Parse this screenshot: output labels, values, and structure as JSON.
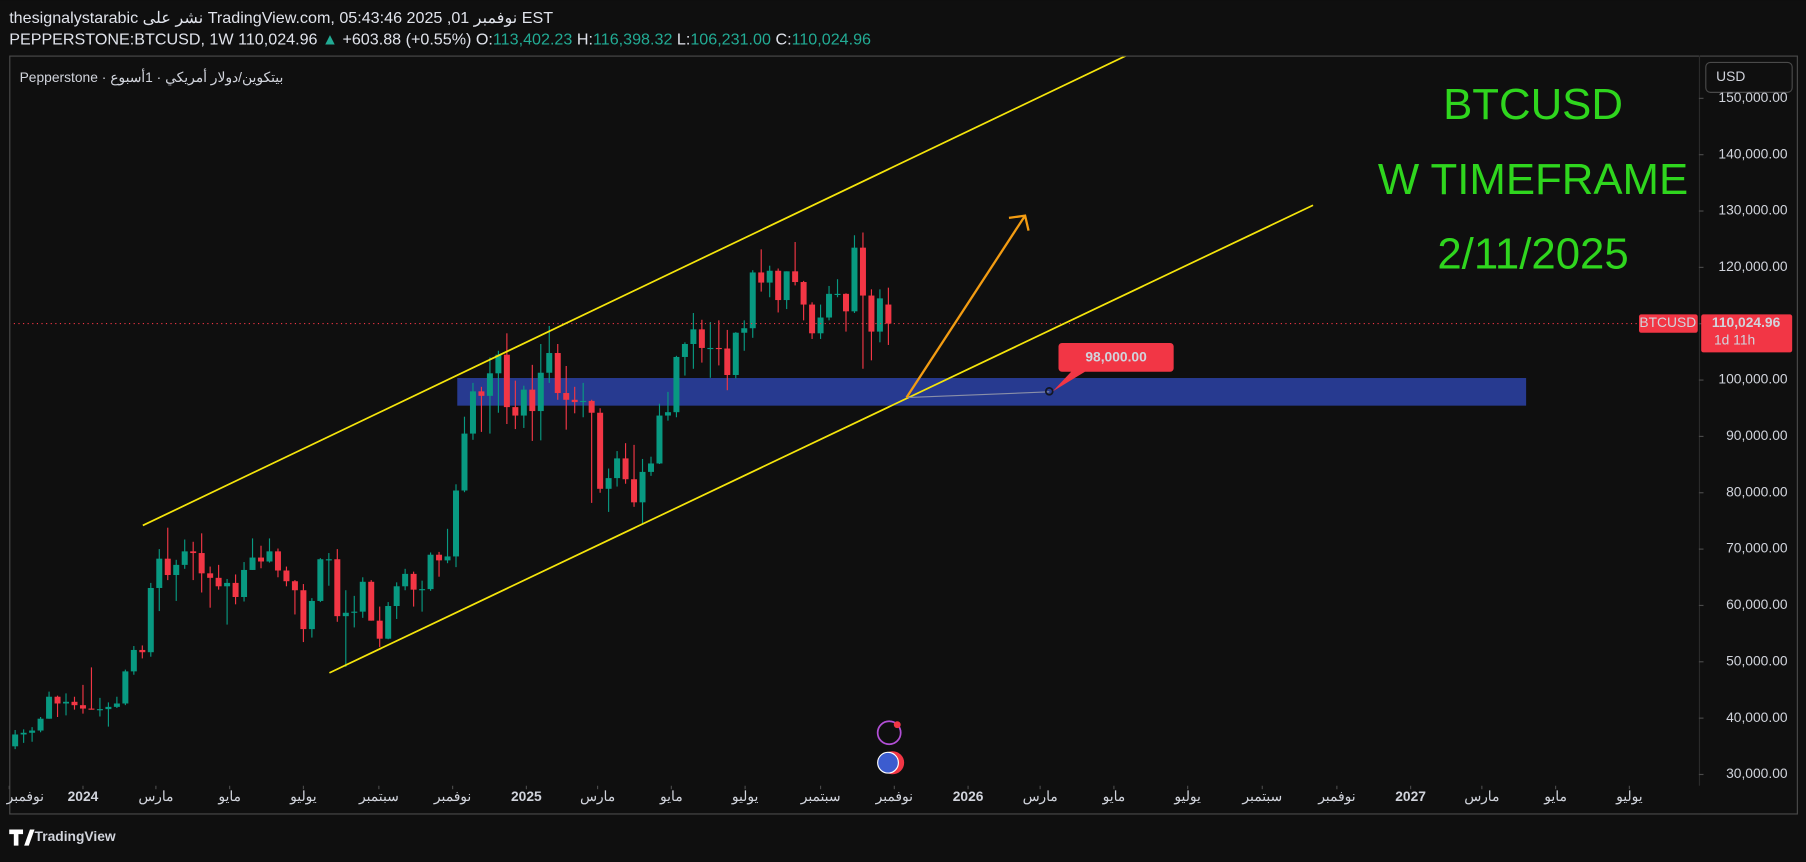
{
  "header": {
    "line1": "thesignalystarabic نشر على TradingView.com, نوفمبر 01, 2025 05:43:46 EST",
    "symbol": "PEPPERSTONE:BTCUSD, 1W",
    "last": "110,024.96",
    "arrow": "▲",
    "change": "+603.88 (+0.55%)",
    "ohlc": [
      [
        "O:",
        "113,402.23"
      ],
      [
        "H:",
        "116,398.32"
      ],
      [
        "L:",
        "106,231.00"
      ],
      [
        "C:",
        "110,024.96"
      ]
    ],
    "legend": "Pepperstone · بيتكوين/دولار أمريكي · 1أسبوع",
    "currency": "USD",
    "brand": "TradingView"
  },
  "chart_data": {
    "type": "candlestick",
    "title_lines": [
      "BTCUSD",
      "W TIMEFRAME",
      "2/11/2025"
    ],
    "up_color": "#089981",
    "down_color": "#f23645",
    "open": [
      35000,
      37100,
      37400,
      37800,
      39900,
      43800,
      42600,
      42900,
      42300,
      41700,
      41600,
      41600,
      42000,
      42600,
      48300,
      52100,
      51700,
      63100,
      68300,
      65400,
      67200,
      69600,
      69300,
      65700,
      64900,
      63400,
      64000,
      61500,
      66300,
      68500,
      67800,
      69600,
      66200,
      64300,
      62700,
      55800,
      60800,
      68200,
      68200,
      58100,
      58700,
      58900,
      64200,
      57300,
      54100,
      59900,
      63400,
      65600,
      62800,
      62900,
      69000,
      68000,
      68700,
      80400,
      90500,
      98000,
      97200,
      101200,
      104500,
      95200,
      93700,
      98300,
      94500,
      101300,
      104800,
      97700,
      96500,
      96100,
      96300,
      94200,
      80700,
      82600,
      86100,
      82400,
      78300,
      83700,
      85200,
      93700,
      94300,
      104100,
      106400,
      109000,
      105700,
      105700,
      105600,
      100900,
      108400,
      109200,
      119100,
      117300,
      119400,
      114200,
      119300,
      117400,
      113400,
      108300,
      111100,
      115300,
      115300,
      112200,
      123500,
      115000,
      108600,
      113402.23
    ],
    "high": [
      37900,
      38000,
      38400,
      40200,
      44700,
      44000,
      44400,
      43800,
      45900,
      49000,
      43600,
      42800,
      43800,
      48600,
      52800,
      52900,
      64000,
      70000,
      73800,
      68100,
      71700,
      71300,
      72800,
      66900,
      67200,
      64700,
      65500,
      67700,
      71900,
      70600,
      71900,
      70100,
      66900,
      64500,
      63800,
      61300,
      68400,
      69300,
      70000,
      62700,
      61700,
      65000,
      64500,
      59800,
      60600,
      64100,
      66500,
      66000,
      64400,
      69400,
      69500,
      73600,
      81500,
      93500,
      99500,
      98800,
      104000,
      105200,
      108300,
      99900,
      99000,
      102700,
      106400,
      109600,
      106400,
      102500,
      98800,
      99500,
      96500,
      95000,
      84300,
      87400,
      88800,
      88500,
      86000,
      86400,
      95800,
      97900,
      104300,
      106700,
      111900,
      110700,
      110300,
      110600,
      108900,
      108500,
      110600,
      119500,
      123200,
      120300,
      119800,
      119300,
      124500,
      117600,
      113800,
      113400,
      116700,
      117900,
      115400,
      125700,
      126200,
      116100,
      116100,
      116398.32
    ],
    "low": [
      34500,
      35600,
      35800,
      37500,
      39900,
      40200,
      40500,
      41500,
      40800,
      41500,
      40300,
      38500,
      41800,
      42300,
      47700,
      50600,
      50900,
      59000,
      64500,
      60800,
      66500,
      64500,
      62300,
      59600,
      62800,
      56600,
      60200,
      60700,
      66300,
      66600,
      67600,
      65000,
      63400,
      58400,
      53500,
      54300,
      60600,
      63500,
      57100,
      49100,
      56100,
      57800,
      57300,
      52600,
      54000,
      57600,
      62700,
      59800,
      58900,
      62600,
      65100,
      67500,
      66800,
      80100,
      89400,
      90800,
      90500,
      94200,
      92200,
      91300,
      91500,
      89200,
      89300,
      99500,
      96500,
      91200,
      94100,
      93400,
      78200,
      80000,
      76600,
      81100,
      81600,
      77500,
      74400,
      83000,
      85100,
      92800,
      93400,
      100800,
      102000,
      103100,
      100400,
      102600,
      98200,
      100300,
      105200,
      107500,
      115700,
      114700,
      112000,
      112600,
      116800,
      110600,
      107300,
      107300,
      110600,
      114700,
      108600,
      111900,
      102000,
      103500,
      106700,
      106231.0
    ],
    "close": [
      37100,
      37400,
      37800,
      39900,
      43800,
      42600,
      42900,
      42300,
      41700,
      41600,
      41600,
      42000,
      42600,
      48300,
      52100,
      51700,
      63100,
      68300,
      65400,
      67200,
      69600,
      69300,
      65700,
      64900,
      63400,
      64000,
      61500,
      66300,
      68500,
      67800,
      69600,
      66200,
      64300,
      62700,
      55800,
      60800,
      68200,
      68200,
      58100,
      58700,
      58900,
      64200,
      57300,
      54100,
      59900,
      63400,
      65600,
      62800,
      62900,
      69000,
      68000,
      68700,
      80400,
      90500,
      98000,
      97200,
      101200,
      104500,
      95200,
      93700,
      98300,
      94500,
      101300,
      104800,
      97700,
      96500,
      96100,
      96300,
      94200,
      80700,
      82600,
      86100,
      82400,
      78300,
      83700,
      85200,
      93700,
      94300,
      104100,
      106400,
      109000,
      105700,
      105700,
      105600,
      100900,
      108400,
      109200,
      119100,
      117300,
      119400,
      114200,
      119300,
      117400,
      113400,
      108300,
      111100,
      115300,
      115300,
      112200,
      123500,
      115000,
      108600,
      114500,
      110024.96
    ],
    "ylim": [
      28000,
      157600
    ],
    "yticks": [
      {
        "value": 30000,
        "label": "30,000.00"
      },
      {
        "value": 40000,
        "label": "40,000.00"
      },
      {
        "value": 50000,
        "label": "50,000.00"
      },
      {
        "value": 60000,
        "label": "60,000.00"
      },
      {
        "value": 70000,
        "label": "70,000.00"
      },
      {
        "value": 80000,
        "label": "80,000.00"
      },
      {
        "value": 90000,
        "label": "90,000.00"
      },
      {
        "value": 100000,
        "label": "100,000.00"
      },
      {
        "value": 110000,
        "label": "110,000.00"
      },
      {
        "value": 120000,
        "label": "120,000.00"
      },
      {
        "value": 130000,
        "label": "130,000.00"
      },
      {
        "value": 140000,
        "label": "140,000.00"
      },
      {
        "value": 150000,
        "label": "150,000.00"
      }
    ],
    "xlim": [
      -0.7,
      198.6
    ],
    "xticks": [
      {
        "value": -0.7,
        "label": "نوفمبر"
      },
      {
        "value": 8,
        "label": "2024"
      },
      {
        "value": 16.6,
        "label": "مارس"
      },
      {
        "value": 25.3,
        "label": "مايو"
      },
      {
        "value": 34,
        "label": "يوليو"
      },
      {
        "value": 42.9,
        "label": "سبتمبر"
      },
      {
        "value": 51.6,
        "label": "نوفمبر"
      },
      {
        "value": 60.3,
        "label": "2025"
      },
      {
        "value": 68.7,
        "label": "مارس"
      },
      {
        "value": 77.4,
        "label": "مايو"
      },
      {
        "value": 86.1,
        "label": "يوليو"
      },
      {
        "value": 95,
        "label": "سبتمبر"
      },
      {
        "value": 103.7,
        "label": "نوفمبر"
      },
      {
        "value": 112.4,
        "label": "2026"
      },
      {
        "value": 120.9,
        "label": "مارس"
      },
      {
        "value": 129.6,
        "label": "مايو"
      },
      {
        "value": 138.3,
        "label": "يوليو"
      },
      {
        "value": 147.1,
        "label": "سبتمبر"
      },
      {
        "value": 155.9,
        "label": "نوفمبر"
      },
      {
        "value": 164.6,
        "label": "2027"
      },
      {
        "value": 173,
        "label": "مارس"
      },
      {
        "value": 181.7,
        "label": "مايو"
      },
      {
        "value": 190.4,
        "label": "يوليو"
      }
    ],
    "last_price": {
      "value": 110024.96,
      "label": "110,024.96"
    },
    "symbol_tag": "BTCUSD",
    "countdown": "1d 11h",
    "target": {
      "value": 98000,
      "label": "98,000.00"
    }
  }
}
